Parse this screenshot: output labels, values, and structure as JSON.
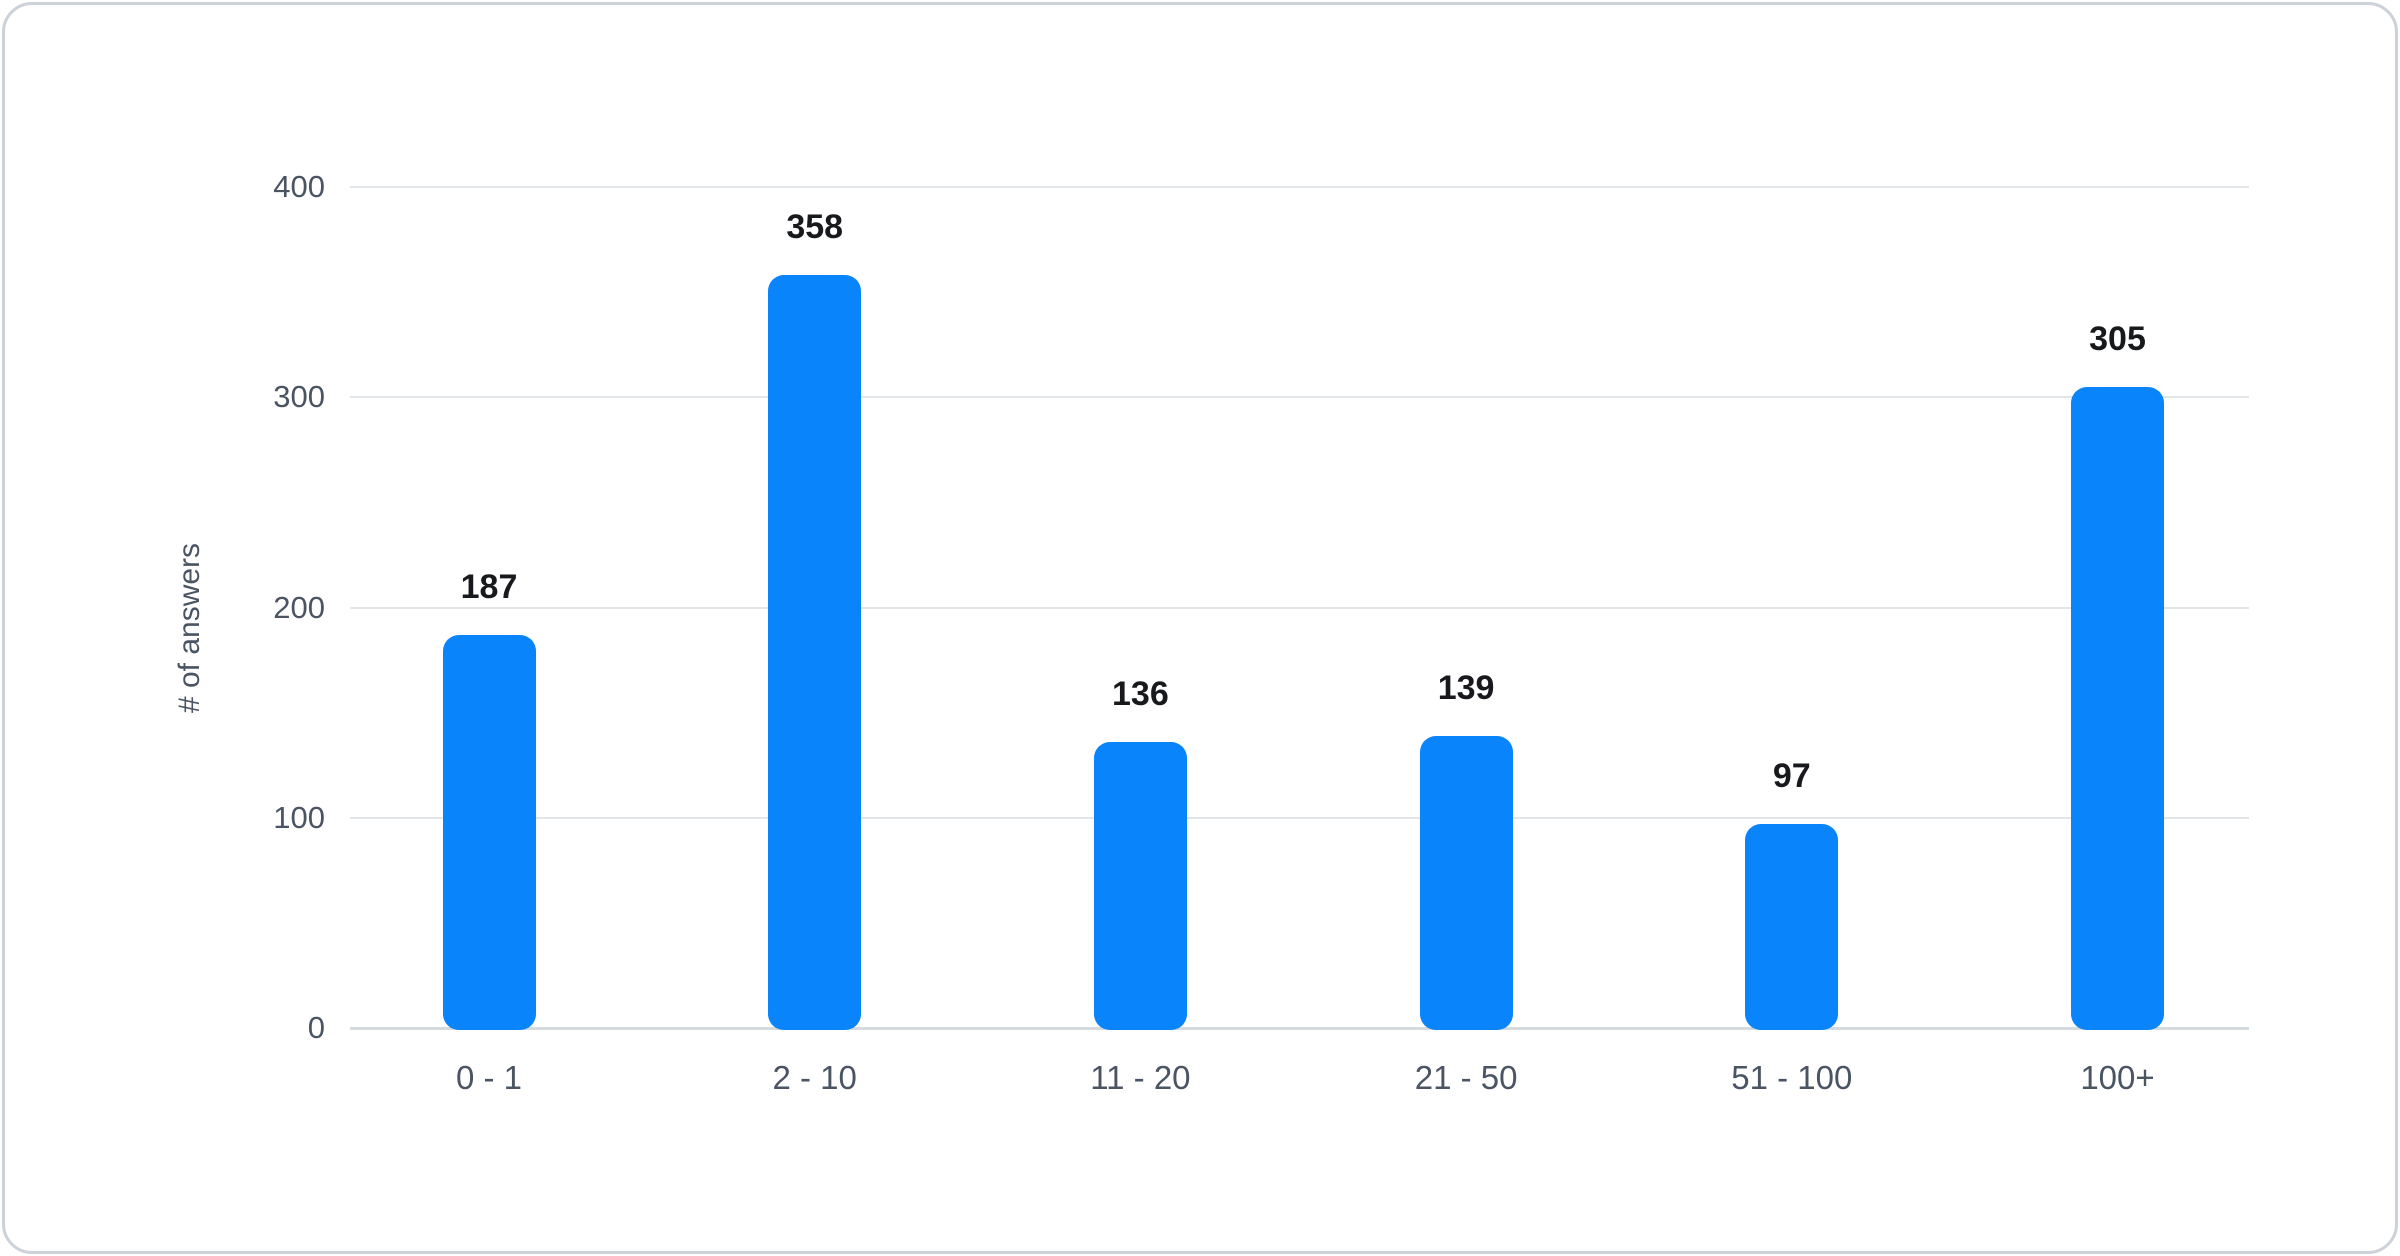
{
  "chart_data": {
    "type": "bar",
    "categories": [
      "0 - 1",
      "2 - 10",
      "11 - 20",
      "21 - 50",
      "51 - 100",
      "100+"
    ],
    "values": [
      187,
      358,
      136,
      139,
      97,
      305
    ],
    "title": "",
    "xlabel": "",
    "ylabel": "# of answers",
    "ylim": [
      0,
      400
    ],
    "yticks": [
      0,
      100,
      200,
      300,
      400
    ],
    "grid": true,
    "legend": false,
    "bar_color": "#0a84fb",
    "colors": {
      "axis_text": "#4a5463",
      "value_label": "#17191d",
      "gridline": "#e2e6e9",
      "card_border": "#ccd2d8",
      "background": "#ffffff"
    }
  }
}
